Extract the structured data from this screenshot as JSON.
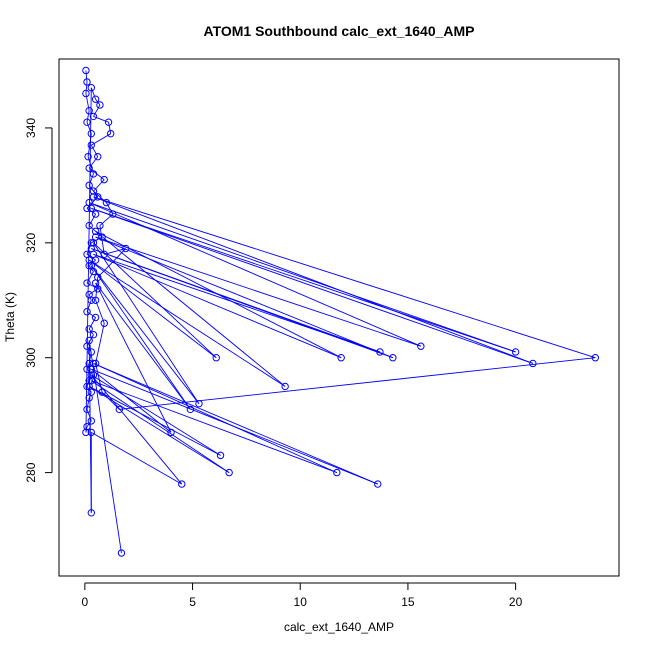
{
  "chart_data": {
    "type": "line",
    "title": "ATOM1 Southbound calc_ext_1640_AMP",
    "xlabel": "calc_ext_1640_AMP",
    "ylabel": "Theta (K)",
    "xlim": [
      -1.2,
      24.8
    ],
    "ylim": [
      262,
      352
    ],
    "x_ticks": [
      0,
      5,
      10,
      15,
      20
    ],
    "y_ticks": [
      280,
      300,
      320,
      340
    ],
    "series_color": "#0000ff",
    "series": [
      {
        "points": [
          [
            0.05,
            350
          ],
          [
            0.1,
            348
          ],
          [
            0.05,
            346
          ],
          [
            0.2,
            343
          ],
          [
            0.1,
            341
          ],
          [
            0.3,
            339
          ],
          [
            0.15,
            335
          ],
          [
            0.4,
            332
          ],
          [
            0.2,
            330
          ],
          [
            0.6,
            328
          ],
          [
            0.1,
            326
          ],
          [
            0.5,
            325
          ],
          [
            0.2,
            323
          ],
          [
            0.8,
            321
          ],
          [
            0.3,
            320
          ],
          [
            0.1,
            318
          ],
          [
            0.5,
            317
          ],
          [
            0.2,
            316
          ],
          [
            0.4,
            315
          ],
          [
            0.1,
            313
          ],
          [
            0.6,
            312
          ],
          [
            0.2,
            311
          ],
          [
            0.3,
            310
          ],
          [
            0.1,
            308
          ],
          [
            0.5,
            307
          ],
          [
            0.2,
            305
          ],
          [
            0.4,
            304
          ],
          [
            0.1,
            302
          ],
          [
            0.3,
            301
          ],
          [
            0.2,
            299
          ],
          [
            0.1,
            298
          ],
          [
            0.4,
            297
          ],
          [
            0.2,
            296
          ],
          [
            0.1,
            295
          ],
          [
            0.3,
            294
          ],
          [
            0.2,
            293
          ],
          [
            0.1,
            291
          ],
          [
            0.3,
            289
          ],
          [
            0.1,
            288
          ],
          [
            0.05,
            287
          ],
          [
            0.3,
            347
          ],
          [
            0.5,
            345
          ],
          [
            0.7,
            344
          ],
          [
            0.4,
            342
          ],
          [
            1.1,
            341
          ],
          [
            1.2,
            339
          ],
          [
            0.3,
            337
          ],
          [
            0.6,
            335
          ],
          [
            0.2,
            333
          ],
          [
            0.9,
            331
          ],
          [
            0.4,
            329
          ],
          [
            1.0,
            327
          ],
          [
            1.3,
            325
          ],
          [
            0.7,
            323
          ],
          [
            0.9,
            318
          ],
          [
            1.9,
            319
          ],
          [
            0.6,
            314
          ],
          [
            0.5,
            310
          ],
          [
            0.9,
            306
          ],
          [
            0.5,
            299
          ],
          [
            0.8,
            294
          ],
          [
            1.6,
            291
          ],
          [
            23.7,
            300
          ],
          [
            0.4,
            328
          ],
          [
            20.8,
            299
          ],
          [
            0.3,
            326
          ],
          [
            20.0,
            301
          ],
          [
            0.2,
            327
          ],
          [
            15.6,
            302
          ],
          [
            0.5,
            321
          ],
          [
            14.3,
            300
          ],
          [
            0.3,
            319
          ],
          [
            13.7,
            301
          ],
          [
            0.4,
            318
          ],
          [
            11.9,
            300
          ],
          [
            0.5,
            322
          ],
          [
            9.3,
            295
          ],
          [
            0.2,
            317
          ],
          [
            6.1,
            300
          ],
          [
            0.4,
            320
          ],
          [
            5.3,
            292
          ],
          [
            0.3,
            316
          ],
          [
            4.9,
            291
          ],
          [
            0.5,
            313
          ],
          [
            4.0,
            287
          ],
          [
            0.3,
            298
          ],
          [
            13.6,
            278
          ],
          [
            0.4,
            299
          ],
          [
            11.7,
            280
          ],
          [
            0.3,
            296
          ],
          [
            6.7,
            280
          ],
          [
            0.2,
            295
          ],
          [
            6.3,
            283
          ],
          [
            0.3,
            297
          ],
          [
            4.5,
            278
          ],
          [
            0.3,
            287
          ],
          [
            0.3,
            273
          ],
          [
            0.2,
            303
          ],
          [
            1.7,
            266
          ]
        ]
      }
    ]
  }
}
